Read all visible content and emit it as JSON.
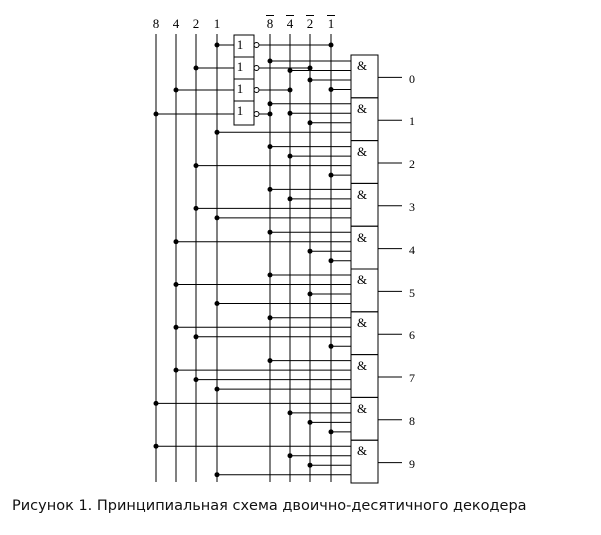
{
  "diagram": {
    "inputs": [
      "8",
      "4",
      "2",
      "1"
    ],
    "inverted_inputs": [
      "8",
      "4",
      "2",
      "1"
    ],
    "inverter_symbol": "1",
    "and_symbol": "&",
    "outputs": [
      "0",
      "1",
      "2",
      "3",
      "4",
      "5",
      "6",
      "7",
      "8",
      "9"
    ]
  },
  "caption": "Рисунок 1. Принципиальная схема двоично-десятичного декодера"
}
